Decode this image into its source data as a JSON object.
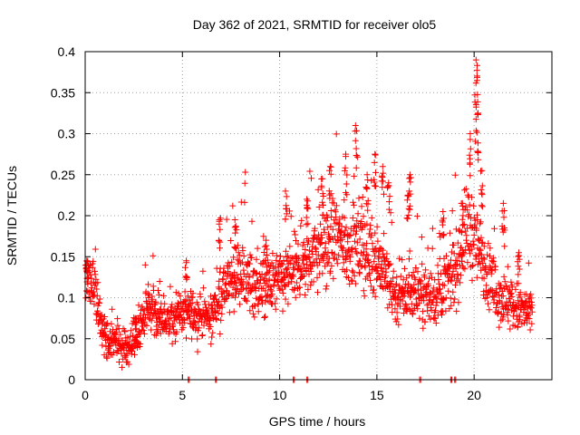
{
  "chart_data": {
    "type": "scatter",
    "title": "Day 362 of 2021, SRMTID for receiver olo5",
    "xlabel": "GPS time / hours",
    "ylabel": "SRMTID / TECUs",
    "xlim": [
      0,
      24
    ],
    "ylim": [
      0,
      0.4
    ],
    "xticks": [
      0,
      5,
      10,
      15,
      20
    ],
    "xtick_labels": [
      "0",
      "5",
      "10",
      "15",
      "20"
    ],
    "yticks": [
      0,
      0.05,
      0.1,
      0.15,
      0.2,
      0.25,
      0.3,
      0.35,
      0.4
    ],
    "ytick_labels": [
      "0",
      "0.05",
      "0.1",
      "0.15",
      "0.2",
      "0.25",
      "0.3",
      "0.35",
      "0.4"
    ],
    "grid": true,
    "marker": "plus",
    "color": "#ff0000",
    "trend": [
      {
        "x": 0.0,
        "y": 0.12
      },
      {
        "x": 0.5,
        "y": 0.11
      },
      {
        "x": 0.8,
        "y": 0.07
      },
      {
        "x": 1.2,
        "y": 0.05
      },
      {
        "x": 1.8,
        "y": 0.045
      },
      {
        "x": 2.4,
        "y": 0.04
      },
      {
        "x": 2.8,
        "y": 0.06
      },
      {
        "x": 3.2,
        "y": 0.09
      },
      {
        "x": 4.0,
        "y": 0.075
      },
      {
        "x": 5.0,
        "y": 0.08
      },
      {
        "x": 5.6,
        "y": 0.08
      },
      {
        "x": 6.5,
        "y": 0.075
      },
      {
        "x": 7.0,
        "y": 0.11
      },
      {
        "x": 8.0,
        "y": 0.13
      },
      {
        "x": 9.0,
        "y": 0.11
      },
      {
        "x": 10.0,
        "y": 0.12
      },
      {
        "x": 11.0,
        "y": 0.135
      },
      {
        "x": 12.0,
        "y": 0.16
      },
      {
        "x": 13.0,
        "y": 0.17
      },
      {
        "x": 14.0,
        "y": 0.16
      },
      {
        "x": 15.0,
        "y": 0.15
      },
      {
        "x": 16.0,
        "y": 0.1
      },
      {
        "x": 17.0,
        "y": 0.11
      },
      {
        "x": 18.0,
        "y": 0.1
      },
      {
        "x": 19.0,
        "y": 0.13
      },
      {
        "x": 19.7,
        "y": 0.19
      },
      {
        "x": 20.2,
        "y": 0.16
      },
      {
        "x": 21.0,
        "y": 0.11
      },
      {
        "x": 22.0,
        "y": 0.09
      },
      {
        "x": 23.0,
        "y": 0.08
      }
    ],
    "peaks": [
      {
        "x": 0.1,
        "y": 0.145
      },
      {
        "x": 2.6,
        "y": 0.075
      },
      {
        "x": 5.2,
        "y": 0.145
      },
      {
        "x": 6.9,
        "y": 0.195
      },
      {
        "x": 7.7,
        "y": 0.195
      },
      {
        "x": 9.3,
        "y": 0.17
      },
      {
        "x": 10.3,
        "y": 0.23
      },
      {
        "x": 11.4,
        "y": 0.22
      },
      {
        "x": 12.2,
        "y": 0.245
      },
      {
        "x": 12.6,
        "y": 0.26
      },
      {
        "x": 13.4,
        "y": 0.275
      },
      {
        "x": 13.9,
        "y": 0.31
      },
      {
        "x": 14.5,
        "y": 0.25
      },
      {
        "x": 14.9,
        "y": 0.275
      },
      {
        "x": 15.3,
        "y": 0.26
      },
      {
        "x": 15.6,
        "y": 0.24
      },
      {
        "x": 16.6,
        "y": 0.225
      },
      {
        "x": 16.7,
        "y": 0.25
      },
      {
        "x": 18.4,
        "y": 0.205
      },
      {
        "x": 19.4,
        "y": 0.215
      },
      {
        "x": 19.8,
        "y": 0.3
      },
      {
        "x": 20.1,
        "y": 0.39
      },
      {
        "x": 20.15,
        "y": 0.365
      },
      {
        "x": 20.2,
        "y": 0.325
      },
      {
        "x": 20.4,
        "y": 0.255
      },
      {
        "x": 21.5,
        "y": 0.215
      },
      {
        "x": 22.3,
        "y": 0.155
      }
    ],
    "zeros": [
      5.3,
      6.7,
      10.7,
      11.4,
      17.2,
      18.8,
      19.0
    ]
  }
}
